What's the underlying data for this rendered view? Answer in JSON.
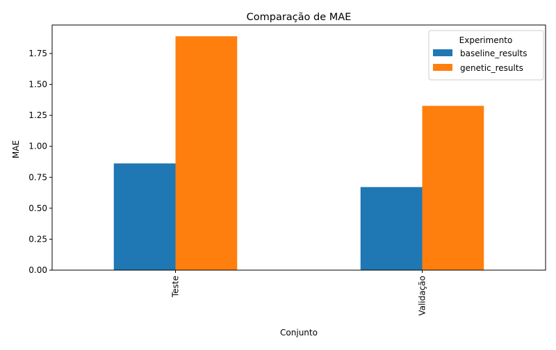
{
  "chart_data": {
    "type": "bar",
    "title": "Comparação de MAE",
    "xlabel": "Conjunto",
    "ylabel": "MAE",
    "categories": [
      "Teste",
      "Validação"
    ],
    "series": [
      {
        "name": "baseline_results",
        "values": [
          0.862,
          0.671
        ],
        "color": "#1f77b4"
      },
      {
        "name": "genetic_results",
        "values": [
          1.889,
          1.327
        ],
        "color": "#ff7f0e"
      }
    ],
    "ylim": [
      0,
      1.98
    ],
    "yticks": [
      "0.00",
      "0.25",
      "0.50",
      "0.75",
      "1.00",
      "1.25",
      "1.50",
      "1.75"
    ],
    "legend": {
      "title": "Experimento",
      "position": "top-right"
    },
    "grid": false,
    "xtick_rotation": "vertical"
  }
}
